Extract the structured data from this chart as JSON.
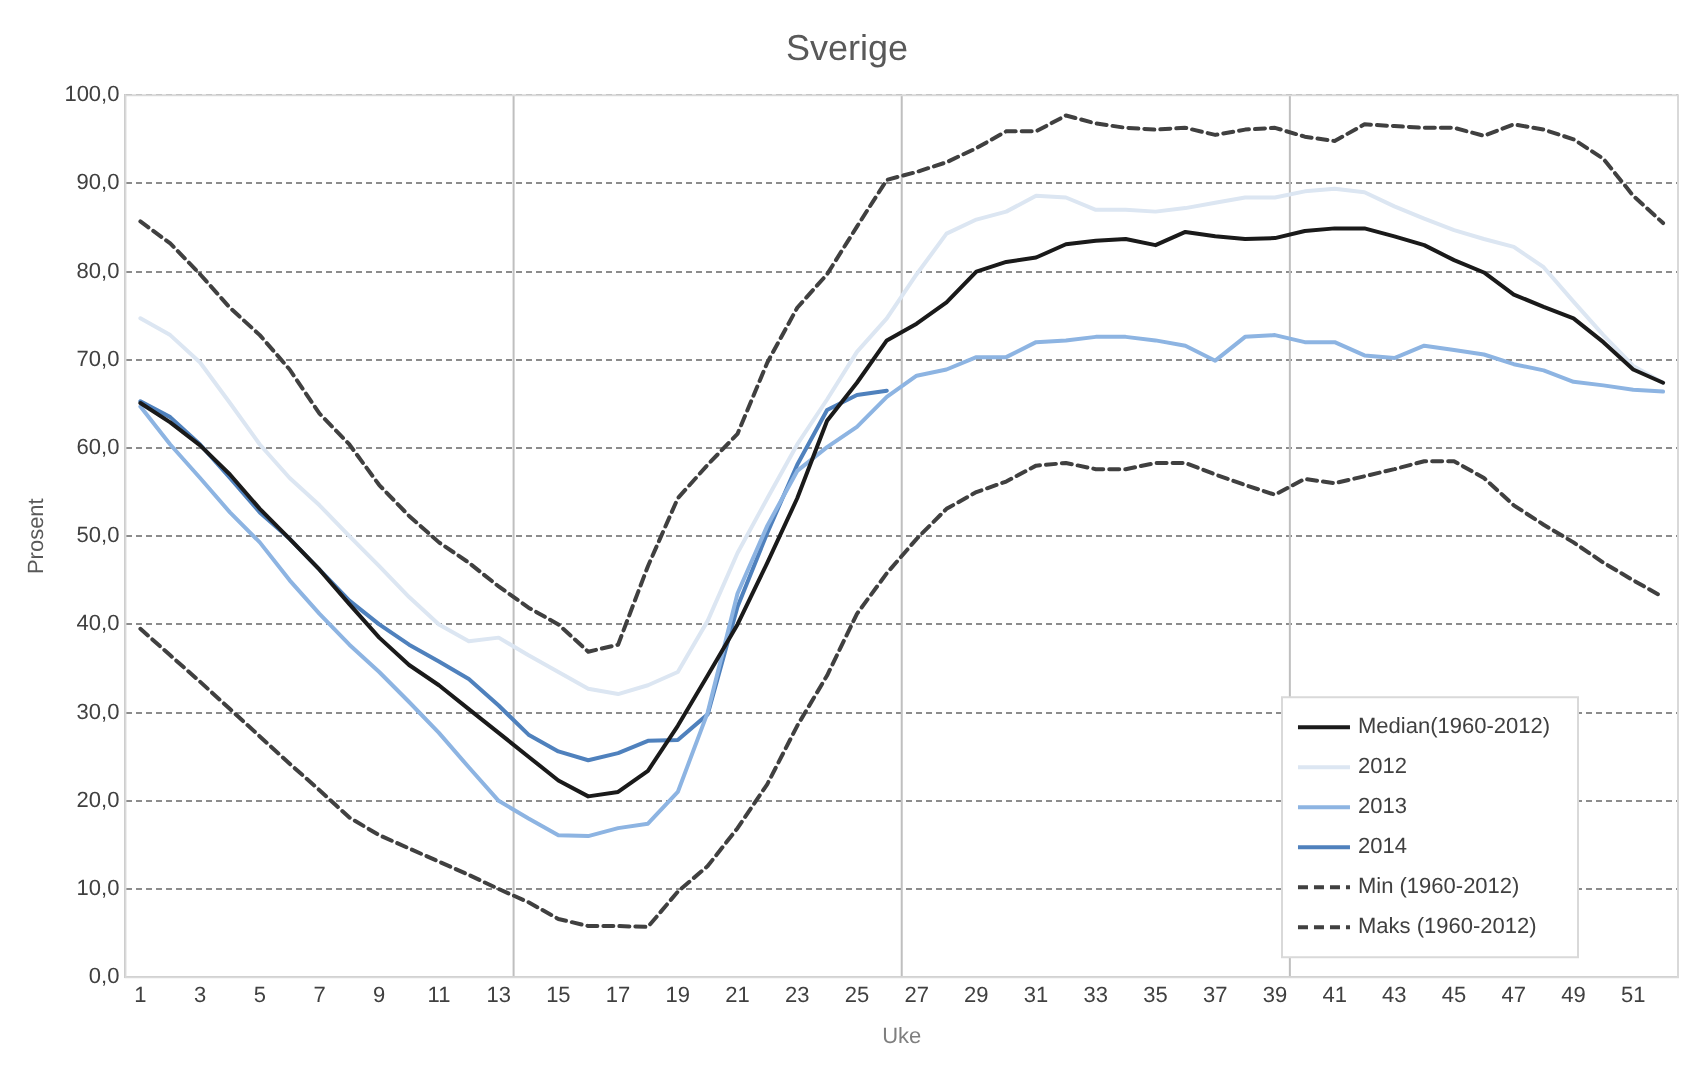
{
  "chart_data": {
    "type": "line",
    "title": "Sverige",
    "xlabel": "Uke",
    "ylabel": "Prosent",
    "x": [
      1,
      2,
      3,
      4,
      5,
      6,
      7,
      8,
      9,
      10,
      11,
      12,
      13,
      14,
      15,
      16,
      17,
      18,
      19,
      20,
      21,
      22,
      23,
      24,
      25,
      26,
      27,
      28,
      29,
      30,
      31,
      32,
      33,
      34,
      35,
      36,
      37,
      38,
      39,
      40,
      41,
      42,
      43,
      44,
      45,
      46,
      47,
      48,
      49,
      50,
      51,
      52
    ],
    "xlim": [
      0.5,
      52.5
    ],
    "xticks": [
      1,
      3,
      5,
      7,
      9,
      11,
      13,
      15,
      17,
      19,
      21,
      23,
      25,
      27,
      29,
      31,
      33,
      35,
      37,
      39,
      41,
      43,
      45,
      47,
      49,
      51
    ],
    "ylim": [
      0,
      100
    ],
    "yticks": [
      {
        "value": 0,
        "label": "0,0"
      },
      {
        "value": 10,
        "label": "10,0"
      },
      {
        "value": 20,
        "label": "20,0"
      },
      {
        "value": 30,
        "label": "30,0"
      },
      {
        "value": 40,
        "label": "40,0"
      },
      {
        "value": 50,
        "label": "50,0"
      },
      {
        "value": 60,
        "label": "60,0"
      },
      {
        "value": 70,
        "label": "70,0"
      },
      {
        "value": 80,
        "label": "80,0"
      },
      {
        "value": 90,
        "label": "90,0"
      },
      {
        "value": 100,
        "label": "100,0"
      }
    ],
    "grid": "y",
    "legend": "bottom right",
    "marker": "none",
    "ref_lines": [
      {
        "axis": "x",
        "value": 13.5,
        "color": "#bfbfbf"
      },
      {
        "axis": "x",
        "value": 26.5,
        "color": "#bfbfbf"
      },
      {
        "axis": "x",
        "value": 39.5,
        "color": "#bfbfbf"
      }
    ],
    "series": [
      {
        "name": "Median(1960-2012)",
        "color": "#1a1a1a",
        "line_style": "solid",
        "values": [
          65.1,
          62.9,
          60.3,
          57,
          53.1,
          49.7,
          46.2,
          42.3,
          38.5,
          35.4,
          33.1,
          30.4,
          27.7,
          25,
          22.3,
          20.5,
          21,
          23.4,
          28.5,
          34.2,
          40,
          47,
          54.3,
          63.1,
          67.4,
          72.2,
          74.1,
          76.5,
          80,
          81.1,
          81.6,
          83.1,
          83.5,
          83.7,
          83,
          84.5,
          84,
          83.7,
          83.8,
          84.6,
          84.9,
          84.9,
          84,
          83,
          81.3,
          79.9,
          77.4,
          76,
          74.7,
          72,
          68.9,
          67.4
        ]
      },
      {
        "name": "2012",
        "color": "#dce6f2",
        "line_style": "solid",
        "values": [
          74.7,
          72.8,
          69.7,
          65.1,
          60.4,
          56.6,
          53.5,
          50,
          46.6,
          43.1,
          40,
          38.1,
          38.5,
          36.5,
          34.6,
          32.7,
          32.1,
          33.1,
          34.6,
          40.4,
          48.1,
          54.3,
          60.4,
          65.5,
          70.9,
          74.7,
          79.7,
          84.3,
          85.9,
          86.8,
          88.6,
          88.4,
          87,
          87,
          86.8,
          87.2,
          87.8,
          88.4,
          88.4,
          89.1,
          89.4,
          89,
          87.4,
          86,
          84.7,
          83.7,
          82.8,
          80.5,
          76.6,
          72.8,
          69.3,
          67.4
        ]
      },
      {
        "name": "2013",
        "color": "#8db4e2",
        "line_style": "solid",
        "values": [
          64.7,
          60.4,
          56.6,
          52.7,
          49.3,
          45,
          41.2,
          37.7,
          34.6,
          31.2,
          27.7,
          23.8,
          20,
          18,
          16.1,
          16,
          16.9,
          17.4,
          21,
          30,
          43.5,
          51.2,
          57.4,
          60.1,
          62.4,
          65.8,
          68.2,
          68.9,
          70.3,
          70.3,
          72,
          72.2,
          72.6,
          72.6,
          72.2,
          71.6,
          69.9,
          72.6,
          72.8,
          72,
          72,
          70.5,
          70.2,
          71.6,
          71.1,
          70.6,
          69.5,
          68.8,
          67.5,
          67.1,
          66.6,
          66.4
        ]
      },
      {
        "name": "2014",
        "color": "#4f81bd",
        "line_style": "solid",
        "values": [
          65.3,
          63.5,
          60.4,
          56.6,
          52.7,
          49.7,
          46.2,
          42.7,
          40,
          37.7,
          35.8,
          33.8,
          30.8,
          27.5,
          25.6,
          24.6,
          25.4,
          26.8,
          26.9,
          29.8,
          42,
          50.4,
          58.1,
          64.3,
          66,
          66.5,
          null,
          null,
          null,
          null,
          null,
          null,
          null,
          null,
          null,
          null,
          null,
          null,
          null,
          null,
          null,
          null,
          null,
          null,
          null,
          null,
          null,
          null,
          null,
          null,
          null,
          null
        ]
      },
      {
        "name": "Min (1960-2012)",
        "color": "#404040",
        "line_style": "dashed",
        "values": [
          39.5,
          36.5,
          33.5,
          30.4,
          27.3,
          24.2,
          21.2,
          18.1,
          16.1,
          14.6,
          13.1,
          11.6,
          10,
          8.5,
          6.6,
          5.8,
          5.8,
          5.7,
          9.7,
          12.6,
          16.9,
          21.9,
          28.5,
          34.2,
          41.2,
          45.8,
          49.7,
          53.1,
          55,
          56.2,
          58,
          58.3,
          57.6,
          57.6,
          58.3,
          58.3,
          57,
          55.8,
          54.7,
          56.5,
          56,
          56.8,
          57.6,
          58.5,
          58.5,
          56.6,
          53.5,
          51.3,
          49.3,
          47,
          45,
          43.1
        ]
      },
      {
        "name": "Maks (1960-2012)",
        "color": "#404040",
        "line_style": "dashed",
        "values": [
          85.7,
          83.2,
          79.7,
          75.9,
          72.8,
          68.9,
          63.9,
          60.4,
          55.8,
          52.3,
          49.3,
          47,
          44.3,
          41.9,
          40,
          36.9,
          37.7,
          46.6,
          54.3,
          58.1,
          61.6,
          69.7,
          75.9,
          79.7,
          85.1,
          90.4,
          91.3,
          92.4,
          94,
          95.9,
          95.9,
          97.7,
          96.8,
          96.3,
          96.1,
          96.3,
          95.5,
          96.1,
          96.3,
          95.3,
          94.8,
          96.7,
          96.5,
          96.3,
          96.3,
          95.4,
          96.7,
          96.1,
          95,
          92.8,
          88.6,
          85.5
        ]
      }
    ]
  }
}
